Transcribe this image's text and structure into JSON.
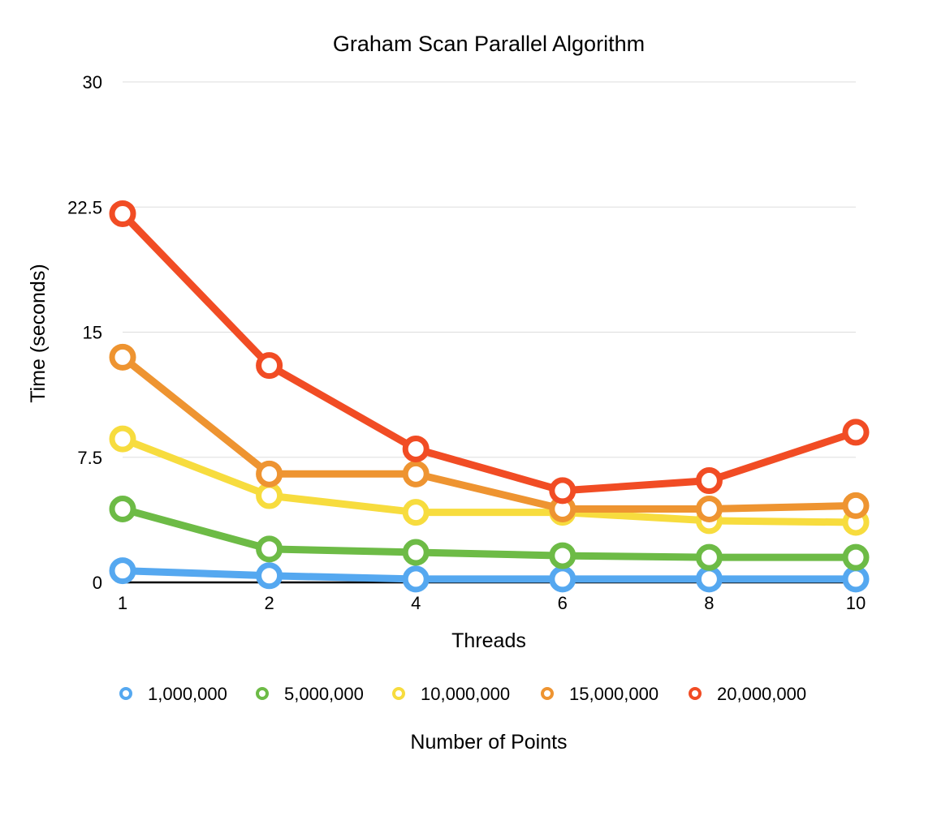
{
  "chart_data": {
    "type": "line",
    "title": "Graham Scan Parallel Algorithm",
    "xlabel": "Threads",
    "ylabel": "Time (seconds)",
    "legend_title": "Number of Points",
    "legend_position": "bottom",
    "categories": [
      "1",
      "2",
      "4",
      "6",
      "8",
      "10"
    ],
    "yticks": [
      "0",
      "7.5",
      "15",
      "22.5",
      "30"
    ],
    "ylim": [
      0,
      30
    ],
    "grid": true,
    "series": [
      {
        "name": "1,000,000",
        "color": "#55a8f0",
        "values": [
          0.7,
          0.4,
          0.2,
          0.2,
          0.2,
          0.2
        ]
      },
      {
        "name": "5,000,000",
        "color": "#6dbb46",
        "values": [
          4.4,
          2.0,
          1.8,
          1.6,
          1.5,
          1.5
        ]
      },
      {
        "name": "10,000,000",
        "color": "#f7dc3e",
        "values": [
          8.6,
          5.2,
          4.2,
          4.2,
          3.7,
          3.6
        ]
      },
      {
        "name": "15,000,000",
        "color": "#ee9431",
        "values": [
          13.5,
          6.5,
          6.5,
          4.4,
          4.4,
          4.6
        ]
      },
      {
        "name": "20,000,000",
        "color": "#f14c24",
        "values": [
          22.1,
          13.0,
          8.0,
          5.5,
          6.1,
          9.0
        ]
      }
    ]
  }
}
